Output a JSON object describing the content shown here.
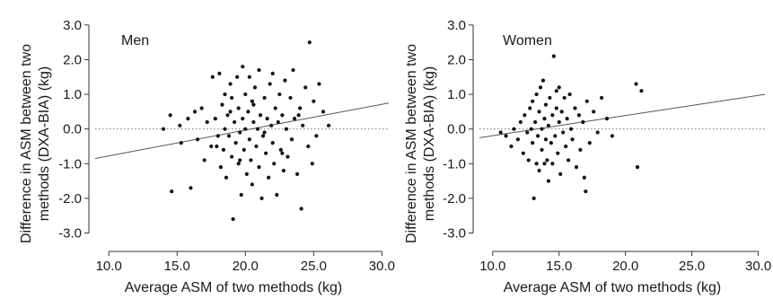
{
  "chart_data": [
    {
      "type": "scatter",
      "title": "Men",
      "xlabel": "Average ASM of two methods (kg)",
      "ylabel_lines": [
        "Difference in ASM between two",
        "methods (DXA-BIA) (kg)"
      ],
      "xlim": [
        9.0,
        30.5
      ],
      "ylim": [
        -3.35,
        3.1
      ],
      "xticks": [
        "10.0",
        "15.0",
        "20.0",
        "25.0",
        "30.0"
      ],
      "xtick_values": [
        10,
        15,
        20,
        25,
        30
      ],
      "yticks": [
        "3.0",
        "2.0",
        "1.0",
        "0.0",
        "-1.0",
        "-2.0",
        "-3.0"
      ],
      "ytick_values": [
        3,
        2,
        1,
        0,
        -1,
        -2,
        -3
      ],
      "reference_line_y": 0,
      "regression_line": [
        [
          9.0,
          -0.85
        ],
        [
          30.5,
          0.75
        ]
      ],
      "points": [
        [
          14.0,
          0.0
        ],
        [
          14.5,
          0.4
        ],
        [
          14.6,
          -1.8
        ],
        [
          15.2,
          0.1
        ],
        [
          15.3,
          -0.4
        ],
        [
          15.8,
          0.3
        ],
        [
          16.0,
          -1.7
        ],
        [
          16.3,
          0.5
        ],
        [
          16.5,
          -0.3
        ],
        [
          16.8,
          0.6
        ],
        [
          17.0,
          -0.9
        ],
        [
          17.2,
          0.2
        ],
        [
          17.5,
          -0.5
        ],
        [
          17.6,
          1.5
        ],
        [
          17.8,
          0.3
        ],
        [
          18.0,
          -0.2
        ],
        [
          18.1,
          1.6
        ],
        [
          18.2,
          -1.1
        ],
        [
          18.3,
          0.7
        ],
        [
          18.4,
          -0.6
        ],
        [
          18.5,
          1.0
        ],
        [
          18.5,
          0.0
        ],
        [
          18.6,
          -1.4
        ],
        [
          18.7,
          0.4
        ],
        [
          18.8,
          -0.2
        ],
        [
          18.9,
          1.3
        ],
        [
          19.0,
          -0.8
        ],
        [
          19.0,
          0.9
        ],
        [
          19.1,
          -2.6
        ],
        [
          19.2,
          0.2
        ],
        [
          19.3,
          -0.4
        ],
        [
          19.4,
          1.5
        ],
        [
          19.5,
          -1.0
        ],
        [
          19.5,
          0.6
        ],
        [
          19.6,
          -0.1
        ],
        [
          19.7,
          -1.9
        ],
        [
          19.8,
          0.3
        ],
        [
          19.8,
          1.8
        ],
        [
          19.9,
          -0.6
        ],
        [
          20.0,
          0.0
        ],
        [
          20.0,
          1.0
        ],
        [
          20.1,
          -1.3
        ],
        [
          20.2,
          0.5
        ],
        [
          20.3,
          -0.3
        ],
        [
          20.3,
          1.5
        ],
        [
          20.4,
          -0.9
        ],
        [
          20.5,
          0.8
        ],
        [
          20.5,
          -1.6
        ],
        [
          20.6,
          0.2
        ],
        [
          20.7,
          1.2
        ],
        [
          20.8,
          -0.5
        ],
        [
          20.9,
          0.0
        ],
        [
          21.0,
          -1.1
        ],
        [
          21.0,
          1.7
        ],
        [
          21.1,
          0.4
        ],
        [
          21.2,
          -2.0
        ],
        [
          21.3,
          -0.2
        ],
        [
          21.4,
          0.9
        ],
        [
          21.5,
          -0.7
        ],
        [
          21.6,
          0.3
        ],
        [
          21.7,
          -1.4
        ],
        [
          21.8,
          1.3
        ],
        [
          21.9,
          0.1
        ],
        [
          22.0,
          -0.4
        ],
        [
          22.0,
          1.6
        ],
        [
          22.1,
          -1.0
        ],
        [
          22.2,
          0.6
        ],
        [
          22.3,
          -1.9
        ],
        [
          22.4,
          0.2
        ],
        [
          22.5,
          1.0
        ],
        [
          22.6,
          -0.6
        ],
        [
          22.7,
          0.4
        ],
        [
          22.8,
          -1.2
        ],
        [
          22.9,
          1.4
        ],
        [
          23.0,
          0.0
        ],
        [
          23.1,
          -0.8
        ],
        [
          23.3,
          0.9
        ],
        [
          23.4,
          -0.3
        ],
        [
          23.5,
          1.7
        ],
        [
          23.6,
          0.3
        ],
        [
          23.8,
          -1.3
        ],
        [
          24.0,
          0.6
        ],
        [
          24.1,
          -2.3
        ],
        [
          24.2,
          0.1
        ],
        [
          24.4,
          1.2
        ],
        [
          24.6,
          -0.5
        ],
        [
          24.7,
          2.5
        ],
        [
          24.9,
          -1.0
        ],
        [
          25.0,
          0.8
        ],
        [
          25.2,
          -0.2
        ],
        [
          25.4,
          1.3
        ],
        [
          25.7,
          0.5
        ],
        [
          26.1,
          0.1
        ],
        [
          21.4,
          -0.1
        ],
        [
          20.6,
          0.7
        ],
        [
          18.9,
          0.5
        ],
        [
          19.6,
          -0.9
        ],
        [
          22.7,
          -0.7
        ],
        [
          23.9,
          0.4
        ],
        [
          17.9,
          -0.5
        ]
      ]
    },
    {
      "type": "scatter",
      "title": "Women",
      "xlabel": "Average ASM of two methods (kg)",
      "ylabel_lines": [
        "Difference in ASM between two",
        "methods (DXA-BIA) (kg)"
      ],
      "xlim": [
        9.0,
        30.5
      ],
      "ylim": [
        -3.35,
        3.1
      ],
      "xticks": [
        "10.0",
        "15.0",
        "20.0",
        "25.0",
        "30.0"
      ],
      "xtick_values": [
        10,
        15,
        20,
        25,
        30
      ],
      "yticks": [
        "3.0",
        "2.0",
        "1.0",
        "0.0",
        "-1.0",
        "-2.0",
        "-3.0"
      ],
      "ytick_values": [
        3,
        2,
        1,
        0,
        -1,
        -2,
        -3
      ],
      "reference_line_y": 0,
      "regression_line": [
        [
          9.0,
          -0.25
        ],
        [
          30.5,
          1.0
        ]
      ],
      "points": [
        [
          10.6,
          -0.1
        ],
        [
          11.0,
          -0.2
        ],
        [
          11.4,
          -0.5
        ],
        [
          11.6,
          0.0
        ],
        [
          11.9,
          -0.3
        ],
        [
          12.1,
          0.2
        ],
        [
          12.3,
          -0.7
        ],
        [
          12.4,
          0.4
        ],
        [
          12.6,
          -0.1
        ],
        [
          12.7,
          -0.9
        ],
        [
          12.8,
          0.6
        ],
        [
          12.9,
          0.0
        ],
        [
          13.0,
          -0.4
        ],
        [
          13.0,
          0.8
        ],
        [
          13.1,
          -2.0
        ],
        [
          13.2,
          0.2
        ],
        [
          13.3,
          -1.0
        ],
        [
          13.3,
          1.0
        ],
        [
          13.4,
          -0.2
        ],
        [
          13.5,
          0.5
        ],
        [
          13.5,
          -1.2
        ],
        [
          13.6,
          1.2
        ],
        [
          13.7,
          0.0
        ],
        [
          13.7,
          -0.6
        ],
        [
          13.8,
          1.4
        ],
        [
          13.9,
          0.3
        ],
        [
          13.9,
          -1.0
        ],
        [
          14.0,
          -0.3
        ],
        [
          14.0,
          0.7
        ],
        [
          14.1,
          -0.9
        ],
        [
          14.2,
          0.1
        ],
        [
          14.2,
          -1.5
        ],
        [
          14.3,
          0.9
        ],
        [
          14.4,
          -0.4
        ],
        [
          14.5,
          0.4
        ],
        [
          14.5,
          -1.0
        ],
        [
          14.6,
          2.1
        ],
        [
          14.7,
          -0.2
        ],
        [
          14.8,
          0.6
        ],
        [
          14.9,
          -0.7
        ],
        [
          15.0,
          0.2
        ],
        [
          15.0,
          1.2
        ],
        [
          15.1,
          -1.3
        ],
        [
          15.2,
          0.5
        ],
        [
          15.3,
          -0.1
        ],
        [
          15.4,
          0.9
        ],
        [
          15.5,
          -0.5
        ],
        [
          15.6,
          0.3
        ],
        [
          15.7,
          -0.9
        ],
        [
          15.8,
          1.0
        ],
        [
          15.9,
          0.0
        ],
        [
          16.0,
          -0.3
        ],
        [
          16.2,
          0.6
        ],
        [
          16.3,
          -1.1
        ],
        [
          16.5,
          0.4
        ],
        [
          16.6,
          -0.6
        ],
        [
          16.8,
          0.2
        ],
        [
          17.0,
          -1.8
        ],
        [
          17.1,
          0.8
        ],
        [
          17.3,
          -0.4
        ],
        [
          17.6,
          0.5
        ],
        [
          17.9,
          -0.1
        ],
        [
          18.2,
          0.9
        ],
        [
          18.6,
          0.3
        ],
        [
          19.0,
          -0.2
        ],
        [
          20.8,
          1.3
        ],
        [
          20.9,
          -1.1
        ],
        [
          21.2,
          1.1
        ],
        [
          16.9,
          -1.4
        ],
        [
          14.8,
          1.1
        ]
      ]
    }
  ]
}
